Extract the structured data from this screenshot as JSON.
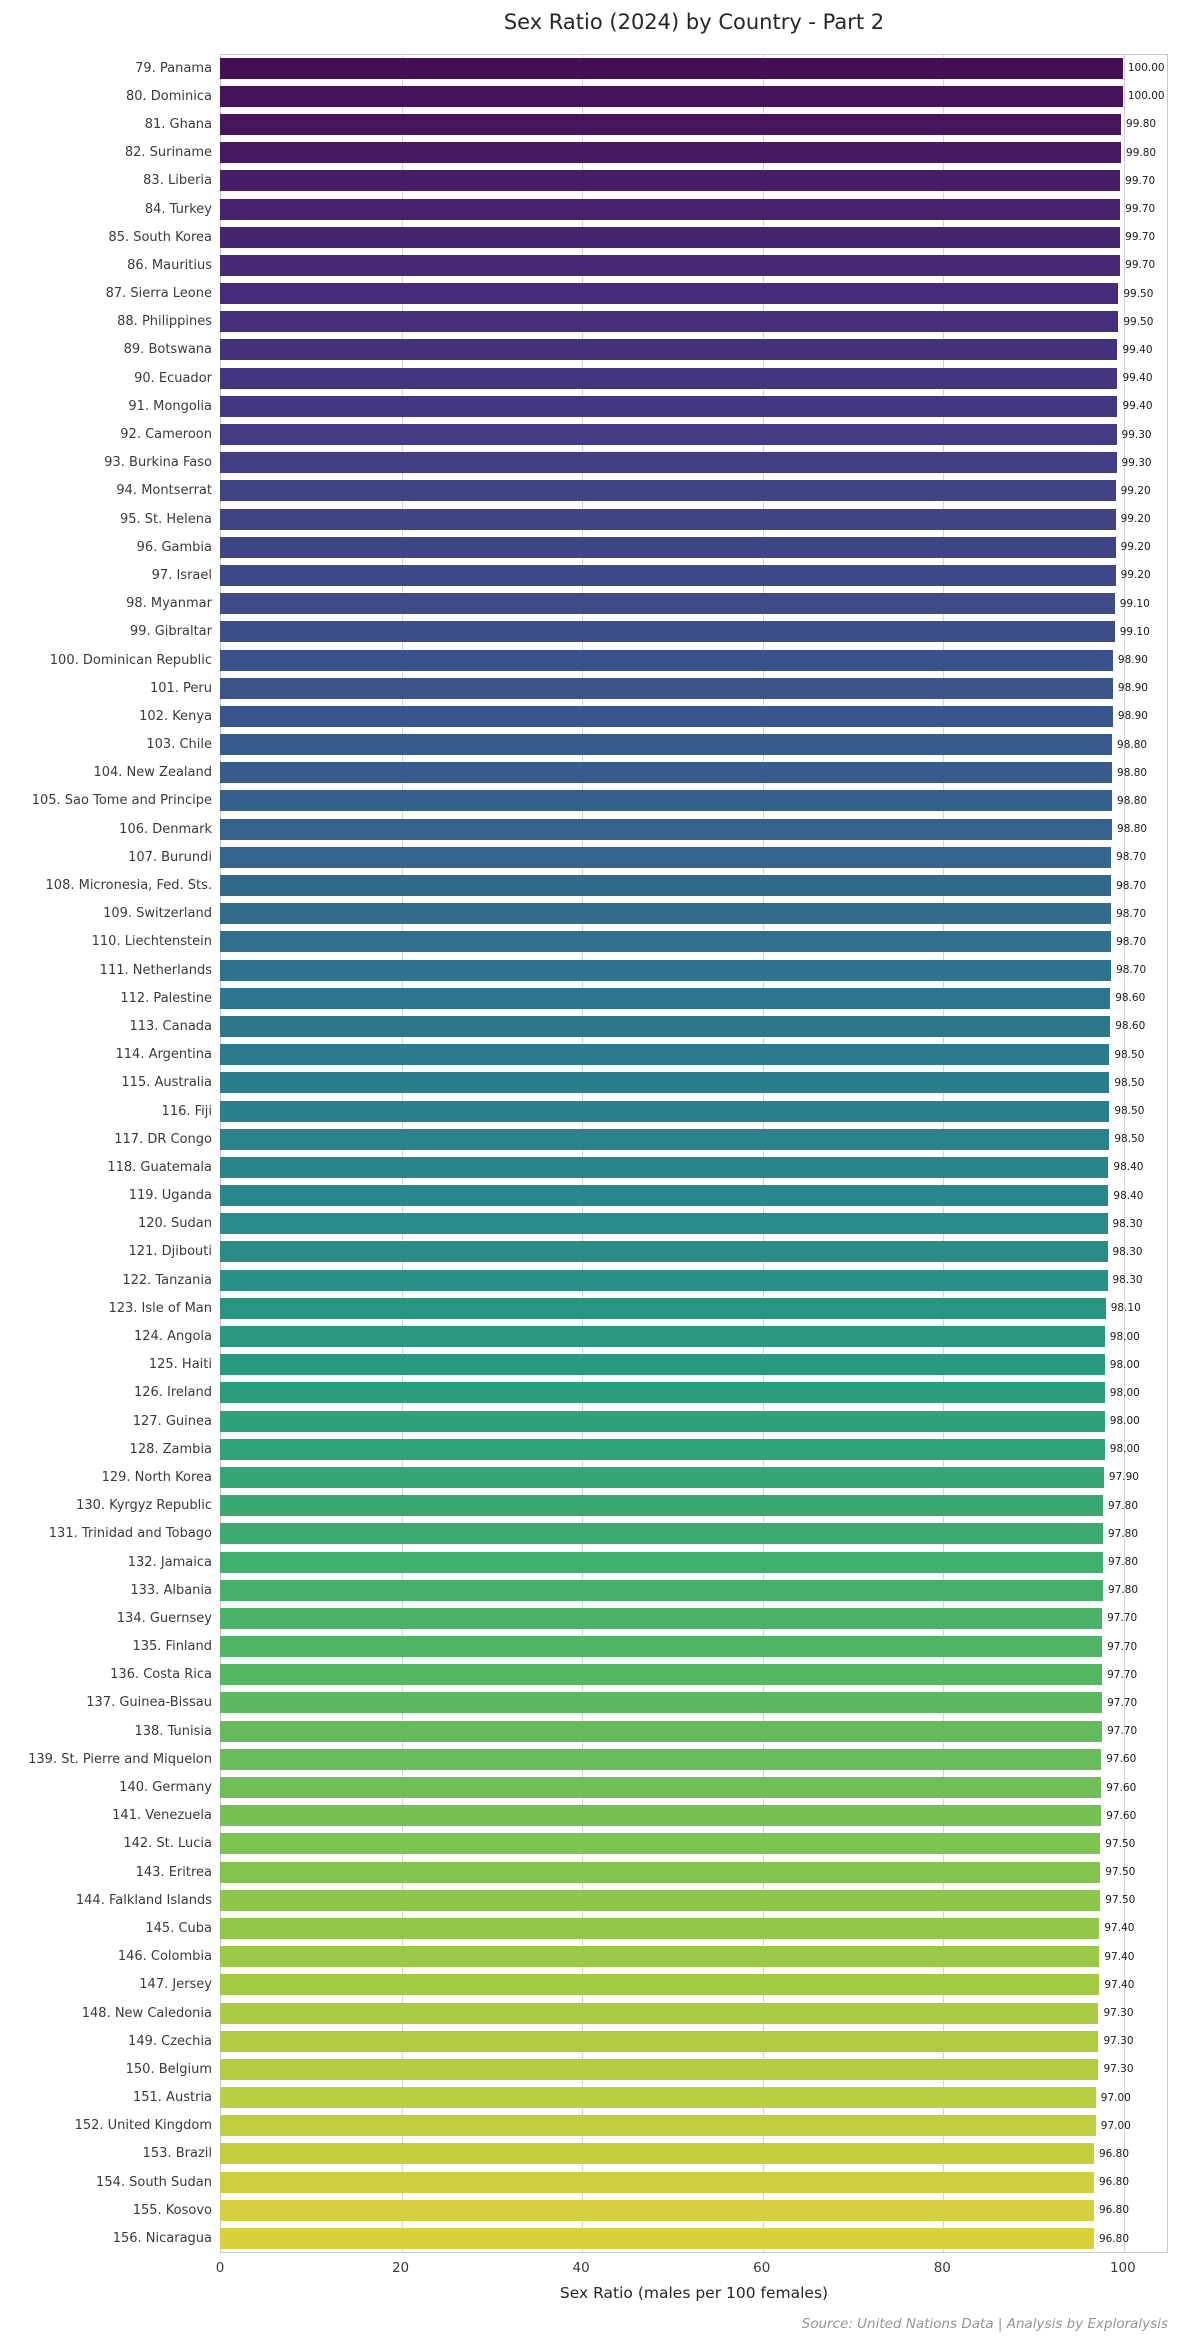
{
  "title": "Sex Ratio (2024) by Country - Part 2",
  "source": "Source: United Nations Data | Analysis by Exploralysis",
  "chart_data": {
    "type": "bar",
    "orientation": "horizontal",
    "title": "Sex Ratio (2024) by Country - Part 2",
    "xlabel": "Sex Ratio (males per 100 females)",
    "ylabel": "",
    "xlim": [
      0,
      105
    ],
    "xticks": [
      0,
      20,
      40,
      60,
      80,
      100
    ],
    "grid": true,
    "value_label_decimals": 2,
    "colormap": {
      "name": "viridis",
      "stops": [
        [
          0.0,
          "#440f54"
        ],
        [
          0.1,
          "#472a7a"
        ],
        [
          0.2,
          "#414287"
        ],
        [
          0.3,
          "#39568c"
        ],
        [
          0.42,
          "#2e738e"
        ],
        [
          0.52,
          "#28878b"
        ],
        [
          0.62,
          "#2ba07c"
        ],
        [
          0.72,
          "#4bb467"
        ],
        [
          0.82,
          "#7ec350"
        ],
        [
          0.9,
          "#abcc42"
        ],
        [
          1.0,
          "#d9d03c"
        ]
      ]
    },
    "categories": [
      "79. Panama",
      "80. Dominica",
      "81. Ghana",
      "82. Suriname",
      "83. Liberia",
      "84. Turkey",
      "85. South Korea",
      "86. Mauritius",
      "87. Sierra Leone",
      "88. Philippines",
      "89. Botswana",
      "90. Ecuador",
      "91. Mongolia",
      "92. Cameroon",
      "93. Burkina Faso",
      "94. Montserrat",
      "95. St. Helena",
      "96. Gambia",
      "97. Israel",
      "98. Myanmar",
      "99. Gibraltar",
      "100. Dominican Republic",
      "101. Peru",
      "102. Kenya",
      "103. Chile",
      "104. New Zealand",
      "105. Sao Tome and Principe",
      "106. Denmark",
      "107. Burundi",
      "108. Micronesia, Fed. Sts.",
      "109. Switzerland",
      "110. Liechtenstein",
      "111. Netherlands",
      "112. Palestine",
      "113. Canada",
      "114. Argentina",
      "115. Australia",
      "116. Fiji",
      "117. DR Congo",
      "118. Guatemala",
      "119. Uganda",
      "120. Sudan",
      "121. Djibouti",
      "122. Tanzania",
      "123. Isle of Man",
      "124. Angola",
      "125. Haiti",
      "126. Ireland",
      "127. Guinea",
      "128. Zambia",
      "129. North Korea",
      "130. Kyrgyz Republic",
      "131. Trinidad and Tobago",
      "132. Jamaica",
      "133. Albania",
      "134. Guernsey",
      "135. Finland",
      "136. Costa Rica",
      "137. Guinea-Bissau",
      "138. Tunisia",
      "139. St. Pierre and Miquelon",
      "140. Germany",
      "141. Venezuela",
      "142. St. Lucia",
      "143. Eritrea",
      "144. Falkland Islands",
      "145. Cuba",
      "146. Colombia",
      "147. Jersey",
      "148. New Caledonia",
      "149. Czechia",
      "150. Belgium",
      "151. Austria",
      "152. United Kingdom",
      "153. Brazil",
      "154. South Sudan",
      "155. Kosovo",
      "156. Nicaragua"
    ],
    "values": [
      100.0,
      100.0,
      99.8,
      99.8,
      99.7,
      99.7,
      99.7,
      99.7,
      99.5,
      99.5,
      99.4,
      99.4,
      99.4,
      99.3,
      99.3,
      99.2,
      99.2,
      99.2,
      99.2,
      99.1,
      99.1,
      98.9,
      98.9,
      98.9,
      98.8,
      98.8,
      98.8,
      98.8,
      98.7,
      98.7,
      98.7,
      98.7,
      98.7,
      98.6,
      98.6,
      98.5,
      98.5,
      98.5,
      98.5,
      98.4,
      98.4,
      98.3,
      98.3,
      98.3,
      98.1,
      98.0,
      98.0,
      98.0,
      98.0,
      98.0,
      97.9,
      97.8,
      97.8,
      97.8,
      97.8,
      97.7,
      97.7,
      97.7,
      97.7,
      97.7,
      97.6,
      97.6,
      97.6,
      97.5,
      97.5,
      97.5,
      97.4,
      97.4,
      97.4,
      97.3,
      97.3,
      97.3,
      97.0,
      97.0,
      96.8,
      96.8,
      96.8,
      96.8
    ]
  }
}
